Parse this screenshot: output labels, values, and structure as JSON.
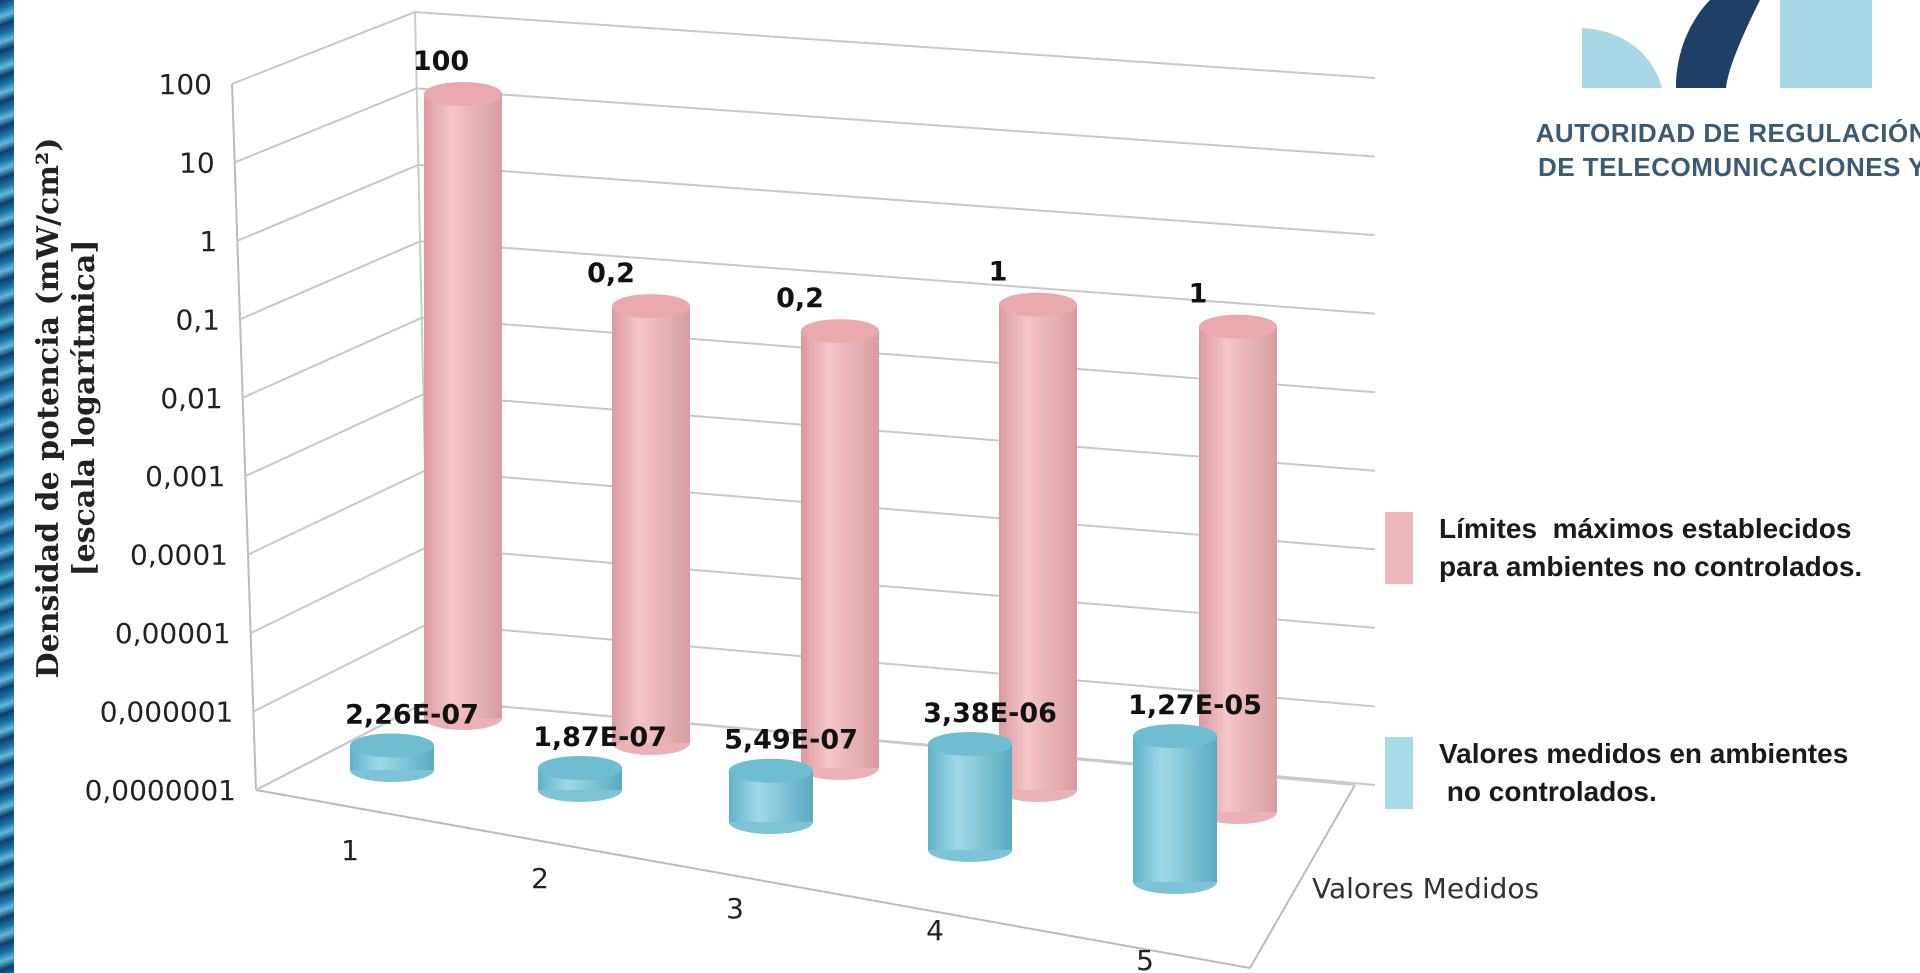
{
  "chart_data": {
    "type": "bar",
    "yscale": "log",
    "ylim": [
      1e-07,
      100
    ],
    "ylabel": "Densidad de potencia (mW/cm²)",
    "ylabel2": "[escala logarítmica]",
    "categories": [
      "1",
      "2",
      "3",
      "4",
      "5"
    ],
    "ytick_labels": [
      "100",
      "10",
      "1",
      "0,1",
      "0,01",
      "0,001",
      "0,0001",
      "0,00001",
      "0,000001",
      "0,0000001"
    ],
    "depth_label": "Valores Medidos",
    "series": [
      {
        "name": "Límites  máximos establecidos para ambientes no controlados.",
        "legend_line1": "Límites  máximos establecidos",
        "legend_line2": "para ambientes no controlados.",
        "color": "#eeb8bc",
        "values": [
          100,
          0.2,
          0.2,
          1,
          1
        ],
        "labels": [
          "100",
          "0,2",
          "0,2",
          "1",
          "1"
        ]
      },
      {
        "name": "Valores medidos en ambientes no controlados.",
        "legend_line1": "Valores medidos en ambientes",
        "legend_line2": " no controlados.",
        "color": "#7fc8da",
        "values": [
          2.26e-07,
          1.87e-07,
          5.49e-07,
          3.38e-06,
          1.27e-05
        ],
        "labels": [
          "2,26E-07",
          "1,87E-07",
          "5,49E-07",
          "3,38E-06",
          "1,27E-05"
        ]
      }
    ],
    "legend_position": "right",
    "grid": true
  },
  "logo": {
    "line1": "AUTORIDAD DE REGULACIÓN",
    "line2": "DE TELECOMUNICACIONES Y"
  }
}
